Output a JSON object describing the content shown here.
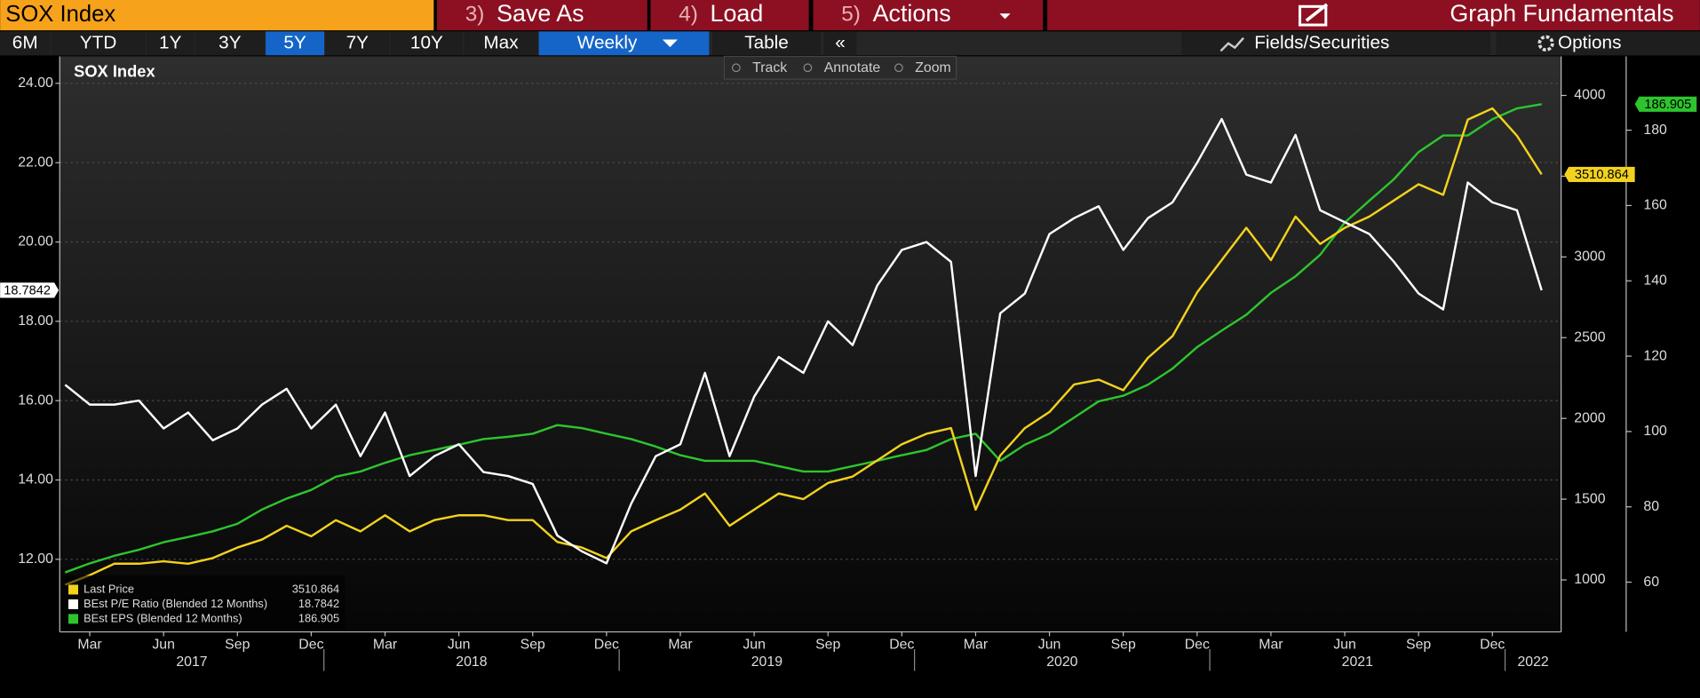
{
  "toolbar": {
    "security": "SOX Index",
    "menu": [
      {
        "key": "3)",
        "label": "Save As"
      },
      {
        "key": "4)",
        "label": "Load"
      },
      {
        "key": "5)",
        "label": "Actions"
      }
    ],
    "graph": "Graph Fundamentals",
    "ranges": [
      "6M",
      "YTD",
      "1Y",
      "3Y",
      "5Y",
      "7Y",
      "10Y",
      "Max"
    ],
    "active_range": "5Y",
    "frequency": "Weekly",
    "table": "Table",
    "collapse": "«",
    "fields": "Fields/Securities",
    "options": "Options",
    "tools": [
      "Track",
      "Annotate",
      "Zoom"
    ]
  },
  "chart_data": {
    "type": "line",
    "title": "SOX Index",
    "x": [
      "2017-02",
      "2017-03",
      "2017-04",
      "2017-05",
      "2017-06",
      "2017-07",
      "2017-08",
      "2017-09",
      "2017-10",
      "2017-11",
      "2017-12",
      "2018-01",
      "2018-02",
      "2018-03",
      "2018-04",
      "2018-05",
      "2018-06",
      "2018-07",
      "2018-08",
      "2018-09",
      "2018-10",
      "2018-11",
      "2018-12",
      "2019-01",
      "2019-02",
      "2019-03",
      "2019-04",
      "2019-05",
      "2019-06",
      "2019-07",
      "2019-08",
      "2019-09",
      "2019-10",
      "2019-11",
      "2019-12",
      "2020-01",
      "2020-02",
      "2020-03",
      "2020-04",
      "2020-05",
      "2020-06",
      "2020-07",
      "2020-08",
      "2020-09",
      "2020-10",
      "2020-11",
      "2020-12",
      "2021-01",
      "2021-02",
      "2021-03",
      "2021-04",
      "2021-05",
      "2021-06",
      "2021-07",
      "2021-08",
      "2021-09",
      "2021-10",
      "2021-11",
      "2021-12",
      "2022-01",
      "2022-02"
    ],
    "xlim": [
      "2017-02",
      "2022-02"
    ],
    "xticks": [
      {
        "value": "2017-03",
        "label": "Mar"
      },
      {
        "value": "2017-06",
        "label": "Jun"
      },
      {
        "value": "2017-09",
        "label": "Sep"
      },
      {
        "value": "2017-12",
        "label": "Dec"
      },
      {
        "value": "2018-03",
        "label": "Mar"
      },
      {
        "value": "2018-06",
        "label": "Jun"
      },
      {
        "value": "2018-09",
        "label": "Sep"
      },
      {
        "value": "2018-12",
        "label": "Dec"
      },
      {
        "value": "2019-03",
        "label": "Mar"
      },
      {
        "value": "2019-06",
        "label": "Jun"
      },
      {
        "value": "2019-09",
        "label": "Sep"
      },
      {
        "value": "2019-12",
        "label": "Dec"
      },
      {
        "value": "2020-03",
        "label": "Mar"
      },
      {
        "value": "2020-06",
        "label": "Jun"
      },
      {
        "value": "2020-09",
        "label": "Sep"
      },
      {
        "value": "2020-12",
        "label": "Dec"
      },
      {
        "value": "2021-03",
        "label": "Mar"
      },
      {
        "value": "2021-06",
        "label": "Jun"
      },
      {
        "value": "2021-09",
        "label": "Sep"
      },
      {
        "value": "2021-12",
        "label": "Dec"
      }
    ],
    "years": [
      "2017",
      "2018",
      "2019",
      "2020",
      "2021",
      "2022"
    ],
    "ylim": [
      10.17,
      24.68
    ],
    "yticks": [
      {
        "value": 12,
        "label": "12.00"
      },
      {
        "value": 14,
        "label": "14.00"
      },
      {
        "value": 16,
        "label": "16.00"
      },
      {
        "value": 18,
        "label": "18.00"
      },
      {
        "value": 20,
        "label": "20.00"
      },
      {
        "value": 22,
        "label": "22.00"
      },
      {
        "value": 24,
        "label": "24.00"
      }
    ],
    "y2lim": [
      678,
      4242
    ],
    "y2ticks": [
      1000,
      1500,
      2000,
      2500,
      3000,
      3500,
      4000
    ],
    "y3lim": [
      46.8,
      199.6
    ],
    "y3ticks": [
      60,
      80,
      100,
      120,
      140,
      160,
      180
    ],
    "grid": true,
    "legend": "lower left",
    "series": [
      {
        "name": "Last Price",
        "color": "#f2d21e",
        "axis": "y2",
        "values": [
          970,
          1030,
          1100,
          1100,
          1115,
          1100,
          1135,
          1200,
          1250,
          1335,
          1270,
          1370,
          1300,
          1400,
          1300,
          1370,
          1400,
          1400,
          1370,
          1370,
          1235,
          1200,
          1135,
          1300,
          1370,
          1435,
          1535,
          1335,
          1435,
          1535,
          1500,
          1600,
          1640,
          1740,
          1840,
          1905,
          1940,
          1435,
          1770,
          1940,
          2040,
          2210,
          2240,
          2175,
          2375,
          2510,
          2780,
          2980,
          3180,
          2980,
          3250,
          3080,
          3180,
          3250,
          3350,
          3450,
          3385,
          3850,
          3920,
          3750,
          3510.864
        ]
      },
      {
        "name": "BEst P/E Ratio (Blended 12 Months)",
        "color": "#ffffff",
        "axis": "y",
        "values": [
          16.4,
          15.9,
          15.9,
          16.0,
          15.3,
          15.7,
          15.0,
          15.3,
          15.9,
          16.3,
          15.3,
          15.9,
          14.6,
          15.7,
          14.1,
          14.6,
          14.9,
          14.2,
          14.1,
          13.9,
          12.6,
          12.2,
          11.9,
          13.4,
          14.6,
          14.9,
          16.7,
          14.6,
          16.1,
          17.1,
          16.7,
          18.0,
          17.4,
          18.9,
          19.8,
          20.0,
          19.5,
          14.1,
          18.2,
          18.7,
          20.2,
          20.6,
          20.9,
          19.8,
          20.6,
          21.0,
          22.0,
          23.1,
          21.7,
          21.5,
          22.7,
          20.8,
          20.5,
          20.2,
          19.5,
          18.7,
          18.3,
          21.5,
          21.0,
          20.8,
          18.7842
        ]
      },
      {
        "name": "BEst EPS (Blended 12 Months)",
        "color": "#2ec42e",
        "axis": "y3",
        "values": [
          62.6,
          65,
          67,
          68.6,
          70.6,
          72,
          73.5,
          75.5,
          79.3,
          82.2,
          84.5,
          88,
          89.4,
          91.7,
          93.7,
          95.1,
          96.5,
          98,
          98.6,
          99.4,
          101.7,
          100.9,
          99.4,
          98,
          96,
          93.7,
          92.2,
          92.2,
          92.2,
          90.8,
          89.4,
          89.4,
          90.8,
          92.2,
          93.7,
          95.1,
          98,
          99.4,
          92.2,
          96.5,
          99.4,
          103.7,
          108,
          109.5,
          112.4,
          116.7,
          122.4,
          126.8,
          131,
          136.8,
          141.2,
          146.9,
          155.5,
          161.3,
          167,
          174.2,
          178.6,
          178.6,
          182.9,
          185.8,
          186.905
        ]
      }
    ]
  }
}
